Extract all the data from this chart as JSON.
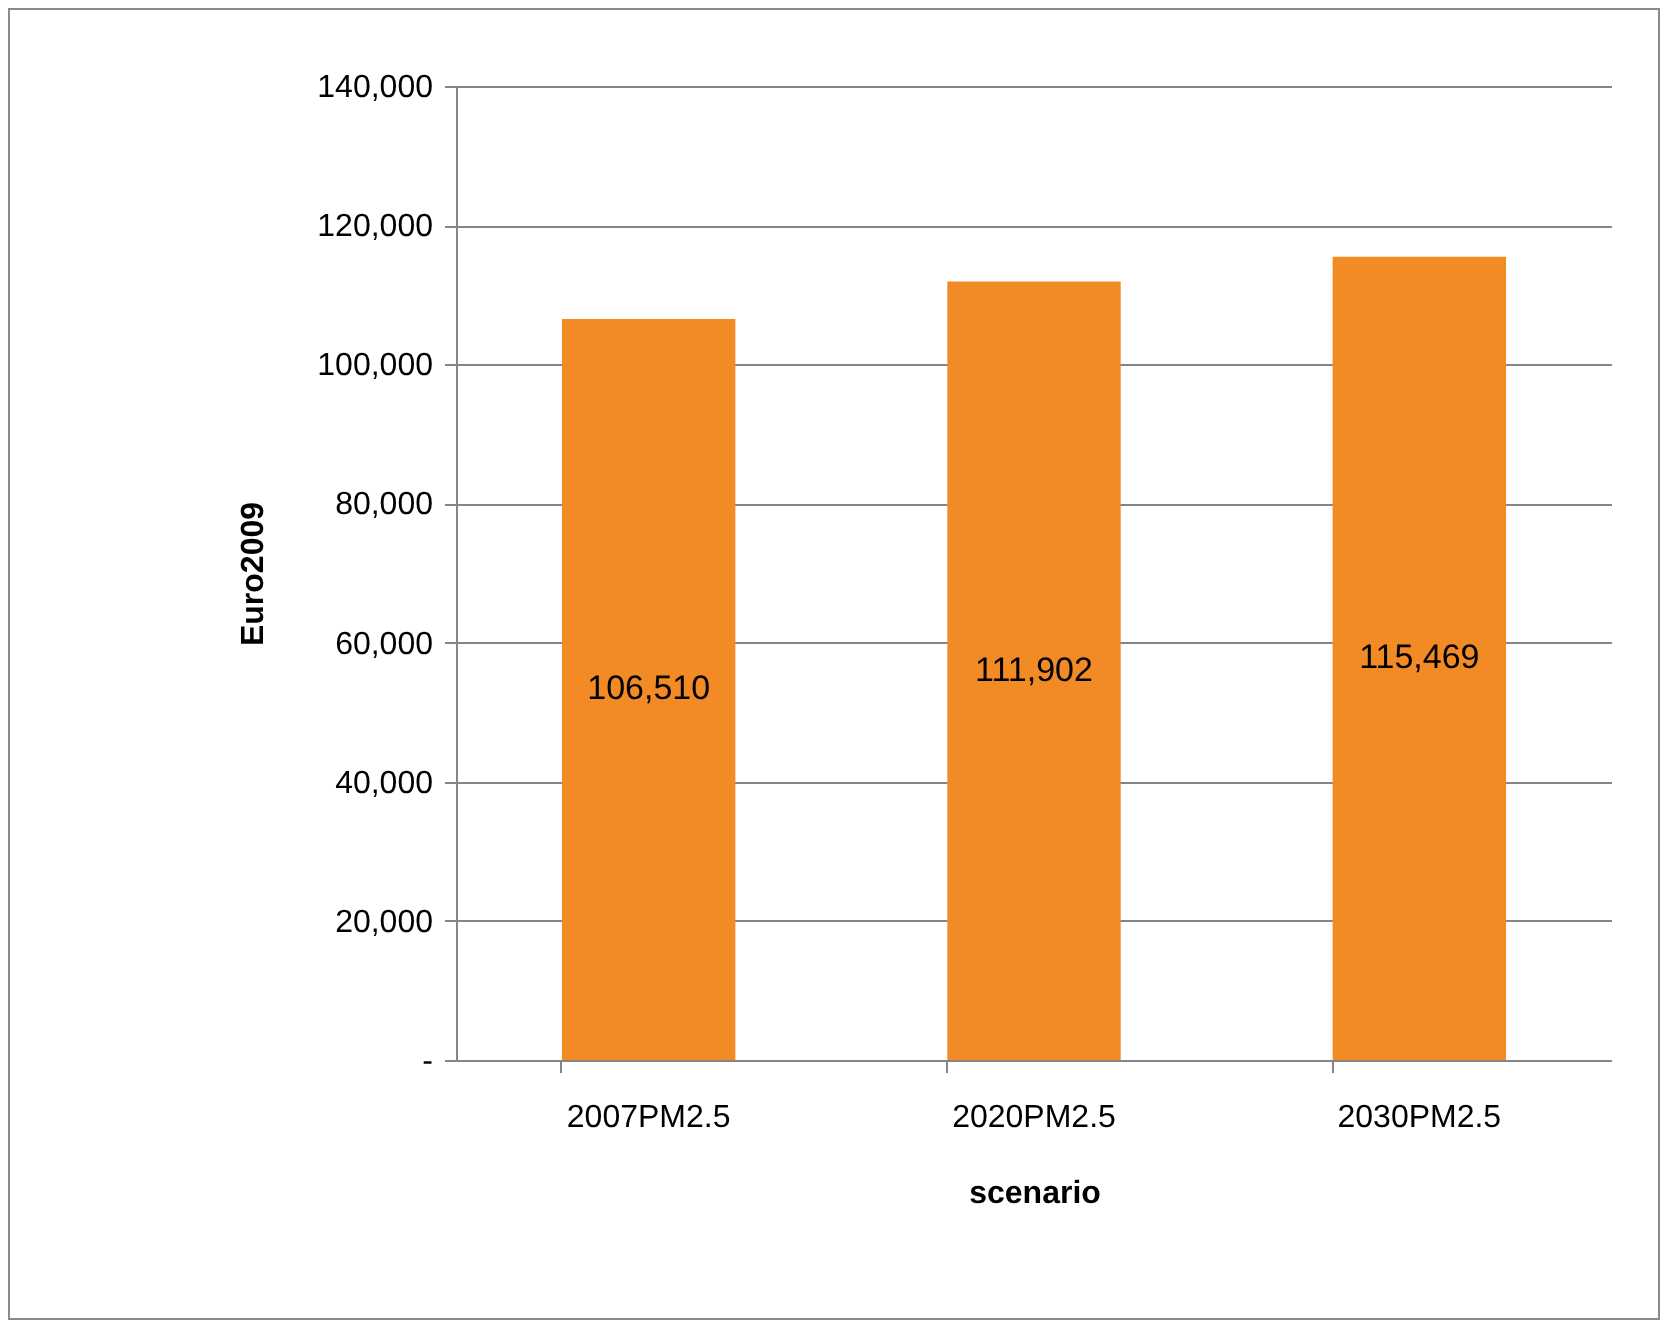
{
  "chart_data": {
    "type": "bar",
    "xlabel": "scenario",
    "ylabel": "Euro2009",
    "categories": [
      "2007PM2.5",
      "2020PM2.5",
      "2030PM2.5"
    ],
    "values": [
      106510,
      111902,
      115469
    ],
    "value_labels": [
      "106,510",
      "111,902",
      "115,469"
    ],
    "color": "#f28a25",
    "ylim": [
      0,
      140000
    ],
    "yticks": [
      {
        "value": 0,
        "label": "-"
      },
      {
        "value": 20000,
        "label": "20,000"
      },
      {
        "value": 40000,
        "label": "40,000"
      },
      {
        "value": 60000,
        "label": "60,000"
      },
      {
        "value": 80000,
        "label": "80,000"
      },
      {
        "value": 100000,
        "label": "100,000"
      },
      {
        "value": 120000,
        "label": "120,000"
      },
      {
        "value": 140000,
        "label": "140,000"
      }
    ],
    "grid": "y"
  }
}
